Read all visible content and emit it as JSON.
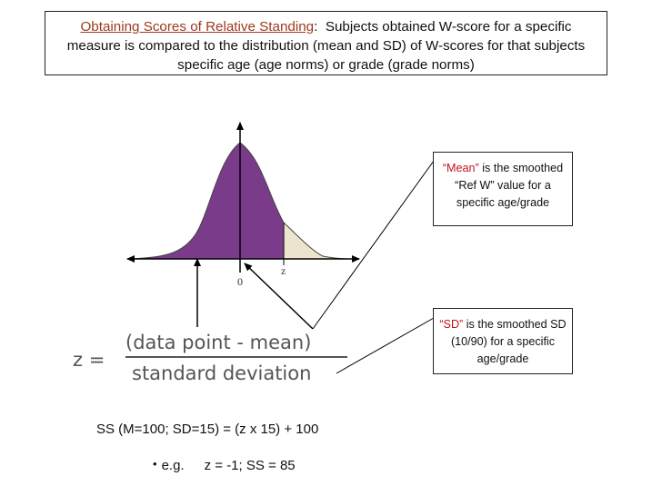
{
  "header": {
    "link_text": "Obtaining Scores of Relative Standing",
    "colon": ":",
    "body": "Subjects obtained W-score for a specific measure is compared to the distribution (mean and SD) of W-scores for that subjects specific age (age norms) or grade (grade norms)"
  },
  "curve": {
    "zero_label": "0",
    "z_label": "z"
  },
  "formula": {
    "lhs": "z =",
    "numerator": "(data point - mean)",
    "denominator": "standard deviation"
  },
  "mean_note": {
    "highlight": "“Mean”",
    "text": "is the smoothed “Ref W” value for a specific age/grade"
  },
  "sd_note": {
    "highlight": "“SD”",
    "text": "is the smoothed SD (10/90) for a specific age/grade"
  },
  "ss_formula": "SS (M=100; SD=15) = (z  x 15) + 100",
  "example": {
    "bullet": "•",
    "label": "e.g.",
    "value": "z = -1; SS = 85"
  },
  "colors": {
    "purple_fill": "#7a3b8a",
    "tail_fill": "#ece4cc",
    "header_link": "#9b3a1c",
    "highlight_red": "#c0141a"
  }
}
